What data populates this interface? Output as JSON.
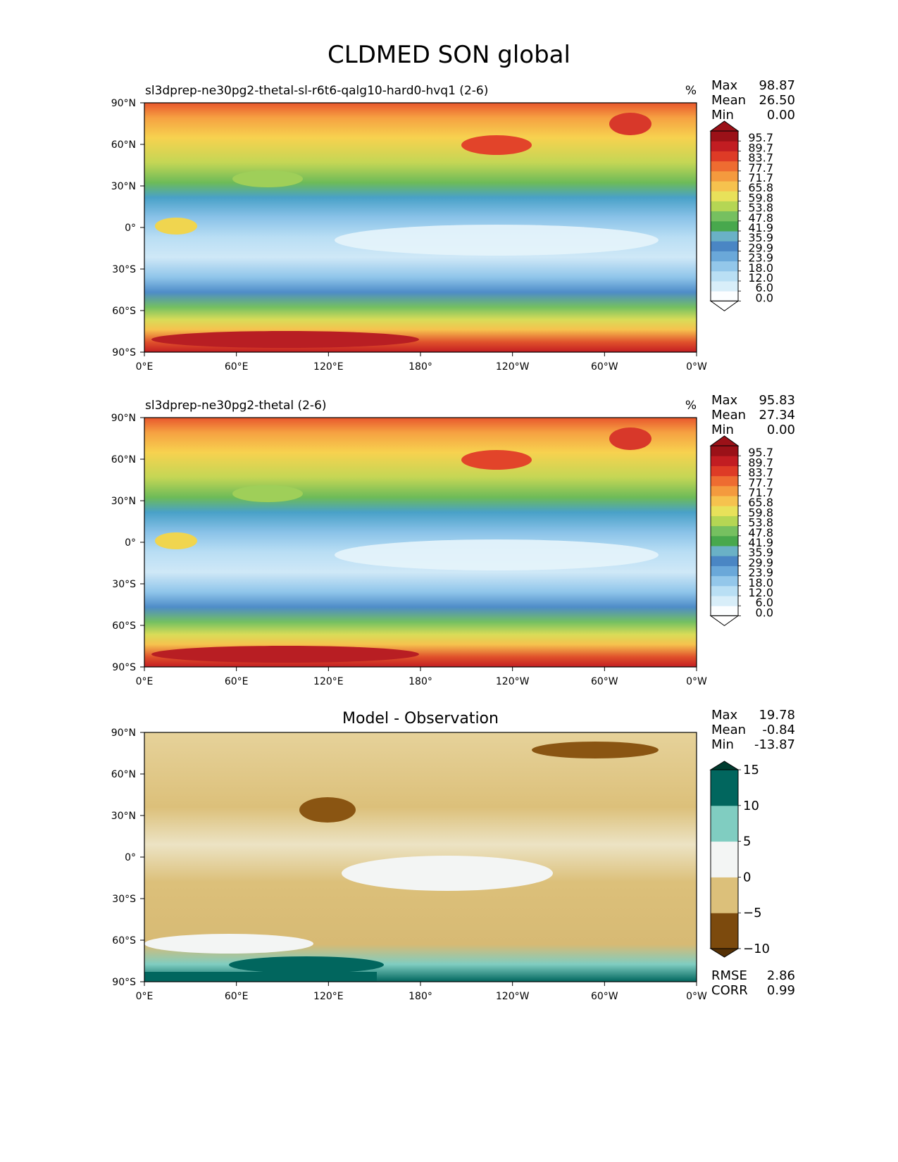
{
  "title": "CLDMED SON global",
  "panels": [
    {
      "id": "model",
      "title": "sl3dprep-ne30pg2-thetal-sl-r6t6-qalg10-hard0-hvq1 (2-6)",
      "units": "%",
      "stats": [
        {
          "label": "Max",
          "value": "98.87"
        },
        {
          "label": "Mean",
          "value": "26.50"
        },
        {
          "label": "Min",
          "value": "0.00"
        }
      ],
      "colorbar": "abs"
    },
    {
      "id": "obs",
      "title": "sl3dprep-ne30pg2-thetal (2-6)",
      "units": "%",
      "stats": [
        {
          "label": "Max",
          "value": "95.83"
        },
        {
          "label": "Mean",
          "value": "27.34"
        },
        {
          "label": "Min",
          "value": "0.00"
        }
      ],
      "colorbar": "abs"
    },
    {
      "id": "diff",
      "title": "Model - Observation",
      "units": "",
      "stats": [
        {
          "label": "Max",
          "value": "19.78"
        },
        {
          "label": "Mean",
          "value": "-0.84"
        },
        {
          "label": "Min",
          "value": "-13.87"
        }
      ],
      "extra_stats": [
        {
          "label": "RMSE",
          "value": "2.86"
        },
        {
          "label": "CORR",
          "value": "0.99"
        }
      ],
      "colorbar": "diff"
    }
  ],
  "axes": {
    "lat_ticks": [
      "90°N",
      "60°N",
      "30°N",
      "0°",
      "30°S",
      "60°S",
      "90°S"
    ],
    "lon_ticks": [
      "0°E",
      "60°E",
      "120°E",
      "180°",
      "120°W",
      "60°W",
      "0°W"
    ]
  },
  "colorbar_abs": {
    "labels": [
      "95.7",
      "89.7",
      "83.7",
      "77.7",
      "71.7",
      "65.8",
      "59.8",
      "53.8",
      "47.8",
      "41.9",
      "35.9",
      "29.9",
      "23.9",
      "18.0",
      "12.0",
      "6.0",
      "0.0"
    ],
    "colors": [
      "#fcfeff",
      "#d8eef9",
      "#b9dff4",
      "#93c7ea",
      "#6aa8d9",
      "#4a86c4",
      "#6ab1c6",
      "#48a84d",
      "#76c060",
      "#b5d654",
      "#e8e15a",
      "#f6c24e",
      "#f49a3e",
      "#ee6c31",
      "#de3b26",
      "#c21d22",
      "#9b1118"
    ]
  },
  "colorbar_diff": {
    "labels": [
      "15",
      "10",
      "5",
      "0",
      "−5",
      "−10"
    ],
    "colors": [
      "#7c4a0d",
      "#dcc07a",
      "#f3f5f4",
      "#80cdc1",
      "#01665e"
    ]
  },
  "chart_data": [
    {
      "type": "heatmap",
      "title": "sl3dprep-ne30pg2-thetal-sl-r6t6-qalg10-hard0-hvq1 (2-6)",
      "units": "%",
      "max": 98.87,
      "mean": 26.5,
      "min": 0.0
    },
    {
      "type": "heatmap",
      "title": "sl3dprep-ne30pg2-thetal (2-6)",
      "units": "%",
      "max": 95.83,
      "mean": 27.34,
      "min": 0.0
    },
    {
      "type": "heatmap",
      "title": "Model - Observation",
      "max": 19.78,
      "mean": -0.84,
      "min": -13.87,
      "rmse": 2.86,
      "corr": 0.99
    }
  ]
}
